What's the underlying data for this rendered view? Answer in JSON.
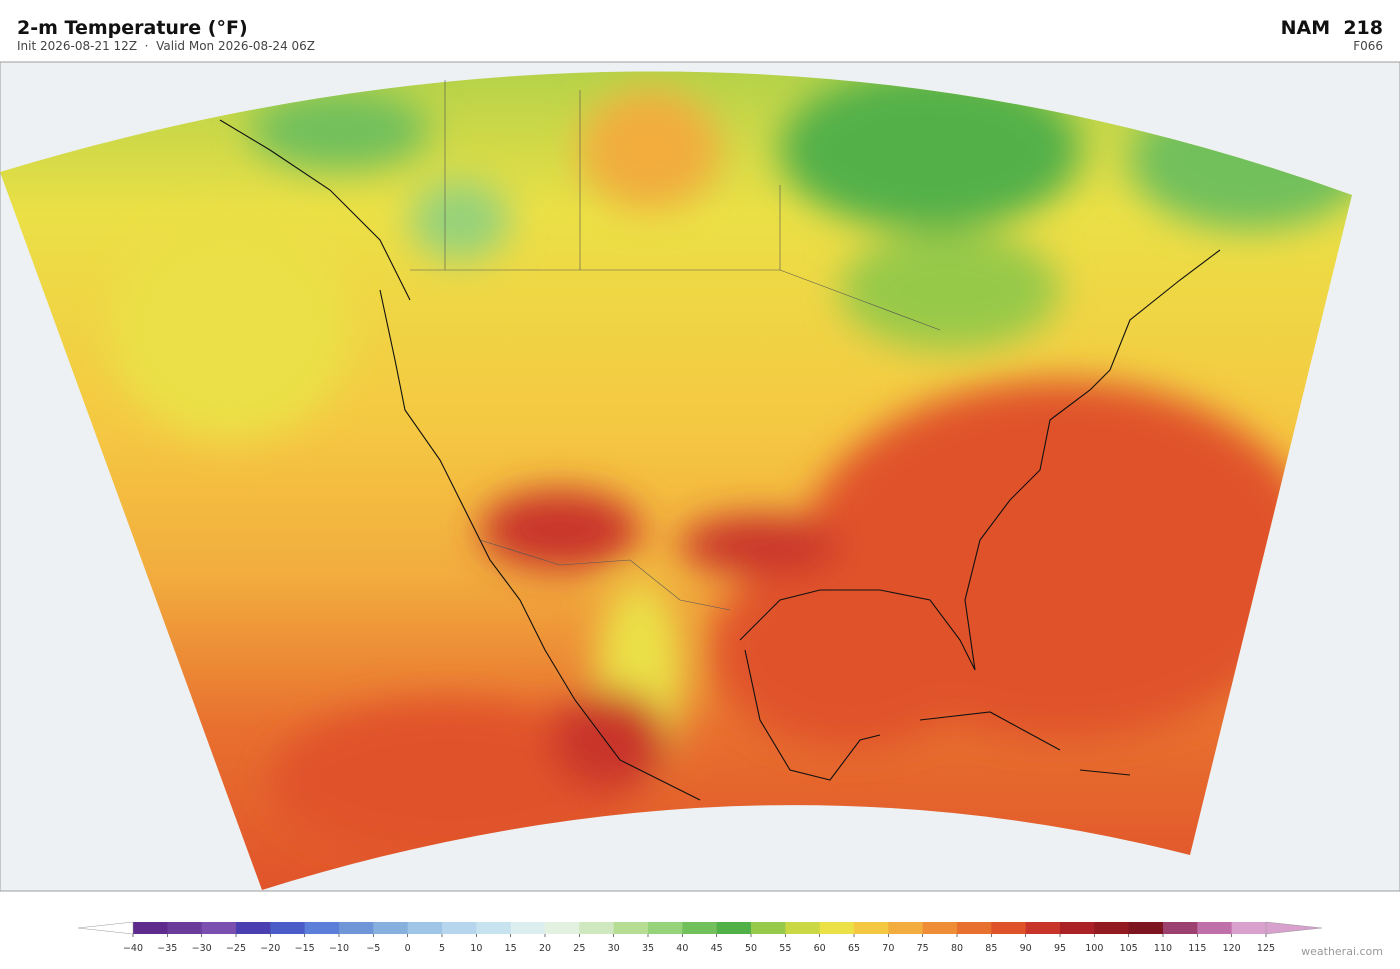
{
  "header": {
    "title": "2-m Temperature  (°F)",
    "subtitle": "Init 2026-08-21 12Z  ·  Valid Mon 2026-08-24 06Z",
    "model": "NAM  218",
    "forecast_hour": "F066"
  },
  "colorbar": {
    "ticks": [
      {
        "value": -40,
        "label": "−40"
      },
      {
        "value": -35,
        "label": "−35"
      },
      {
        "value": -30,
        "label": "−30"
      },
      {
        "value": -25,
        "label": "−25"
      },
      {
        "value": -20,
        "label": "−20"
      },
      {
        "value": -15,
        "label": "−15"
      },
      {
        "value": -10,
        "label": "−10"
      },
      {
        "value": -5,
        "label": "−5"
      },
      0,
      5,
      10,
      15,
      20,
      25,
      30,
      35,
      40,
      45,
      50,
      55,
      60,
      65,
      70,
      75,
      80,
      85,
      90,
      95,
      100,
      105,
      110,
      115,
      120,
      125
    ],
    "colors": [
      "#5e2b8c",
      "#6a3d9a",
      "#7a4fb0",
      "#4a3fb0",
      "#4a5cc8",
      "#5b7fd8",
      "#6f97d8",
      "#86b0de",
      "#9fc6e6",
      "#b5d6ec",
      "#c8e3f0",
      "#dceeee",
      "#e3f2e0",
      "#cfe8bf",
      "#b6dd94",
      "#96d27a",
      "#72c05c",
      "#52b049",
      "#97c94a",
      "#cad846",
      "#ebe046",
      "#f5c842",
      "#f2ad3e",
      "#ee8d36",
      "#e8702f",
      "#e0522a",
      "#c9342a",
      "#ab2226",
      "#941a22",
      "#7d1520",
      "#9c4070",
      "#c070a8",
      "#d8a0cc"
    ],
    "under_color": "#ffffff",
    "over_color": "#d8a0cc"
  },
  "watermark": "weatherai.com"
}
